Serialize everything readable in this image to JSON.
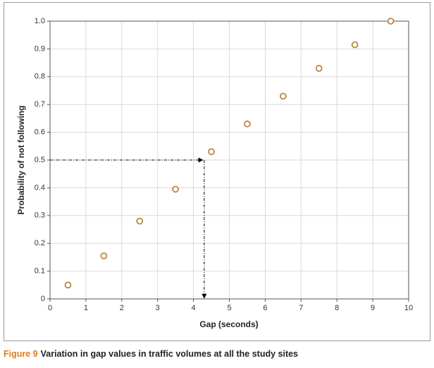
{
  "chart_data": {
    "type": "line",
    "x_label": "Gap (seconds)",
    "y_label": "Probability of not following",
    "figure_label": "Figure 9",
    "caption": "Variation in gap values in traffic volumes at all the study sites",
    "x": [
      0.5,
      1.5,
      2.5,
      3.5,
      4.5,
      5.5,
      6.5,
      7.5,
      8.5,
      9.5
    ],
    "values": [
      0.05,
      0.155,
      0.28,
      0.395,
      0.53,
      0.63,
      0.73,
      0.83,
      0.915,
      1.0
    ],
    "color": "#b5782d",
    "xlim": [
      0,
      10
    ],
    "xticks": [
      0,
      1,
      2,
      3,
      4,
      5,
      6,
      7,
      8,
      9,
      10
    ],
    "ylim": [
      0,
      1
    ],
    "yticks": [
      0,
      0.1,
      0.2,
      0.3,
      0.4,
      0.5,
      0.6,
      0.7,
      0.8,
      0.9,
      {
        "value": 1,
        "label": "1.0"
      }
    ],
    "grid": true,
    "guide": {
      "x": 4.3,
      "y": 0.5
    }
  }
}
